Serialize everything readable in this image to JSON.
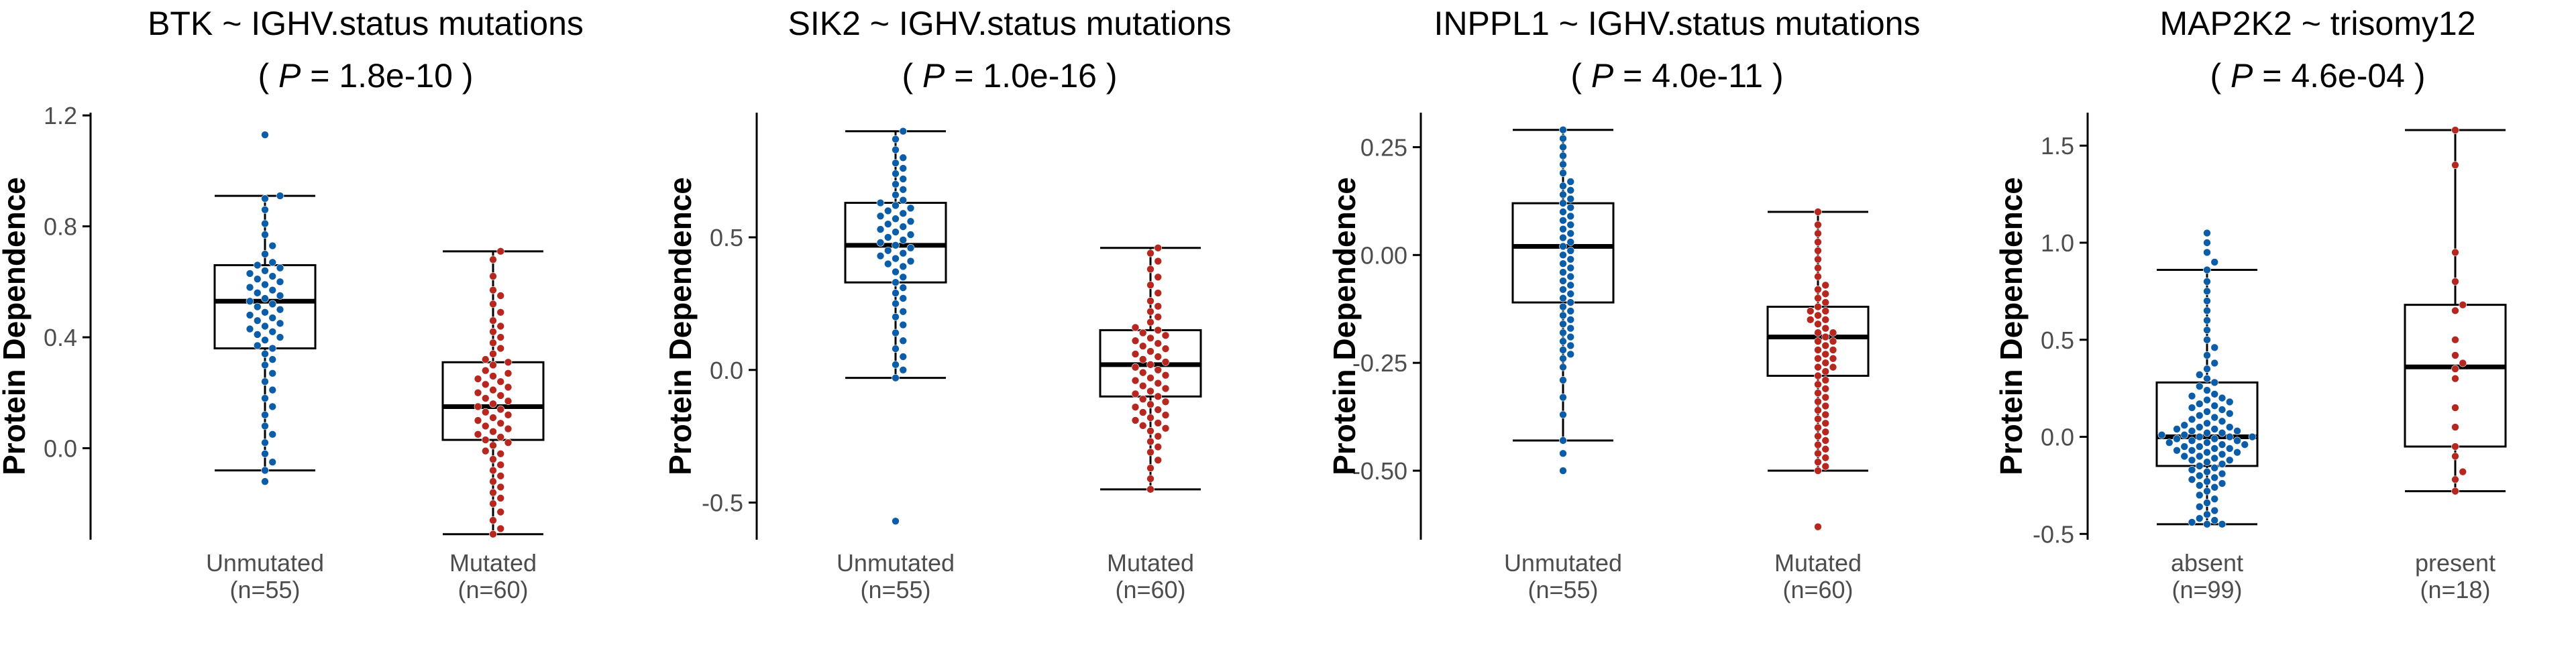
{
  "panels_meta": {
    "blue": "#0B5DA8",
    "red": "#B5271F"
  },
  "chart_data": [
    {
      "type": "boxplot",
      "title": "BTK ~ IGHV.status mutations",
      "p_prefix": "( ",
      "p_symbol": "P",
      "p_value": " = 1.8e-10 )",
      "ylabel": "Protein Dependence",
      "ylim": [
        -0.33,
        1.21
      ],
      "yticks": [
        0.0,
        0.4,
        0.8,
        1.2
      ],
      "ytick_labels": [
        "0.0",
        "0.4",
        "0.8",
        "1.2"
      ],
      "groups": [
        {
          "name": "Unmutated",
          "n_label": "(n=55)",
          "color": "#0B5DA8",
          "q1": 0.36,
          "median": 0.53,
          "q3": 0.66,
          "whisker_low": -0.08,
          "whisker_high": 0.91,
          "points": [
            1.13,
            0.91,
            0.9,
            0.86,
            0.81,
            0.77,
            0.73,
            0.7,
            0.67,
            0.66,
            0.65,
            0.64,
            0.63,
            0.62,
            0.61,
            0.6,
            0.59,
            0.58,
            0.57,
            0.56,
            0.55,
            0.54,
            0.53,
            0.52,
            0.51,
            0.5,
            0.49,
            0.48,
            0.47,
            0.46,
            0.45,
            0.44,
            0.43,
            0.42,
            0.41,
            0.4,
            0.39,
            0.37,
            0.36,
            0.34,
            0.32,
            0.3,
            0.27,
            0.24,
            0.21,
            0.18,
            0.15,
            0.12,
            0.08,
            0.05,
            0.02,
            -0.02,
            -0.05,
            -0.08,
            -0.12
          ]
        },
        {
          "name": "Mutated",
          "n_label": "(n=60)",
          "color": "#B5271F",
          "q1": 0.03,
          "median": 0.15,
          "q3": 0.31,
          "whisker_low": -0.31,
          "whisker_high": 0.71,
          "points": [
            0.71,
            0.68,
            0.62,
            0.57,
            0.55,
            0.52,
            0.49,
            0.46,
            0.44,
            0.42,
            0.4,
            0.38,
            0.36,
            0.34,
            0.32,
            0.31,
            0.3,
            0.28,
            0.27,
            0.26,
            0.25,
            0.24,
            0.23,
            0.22,
            0.21,
            0.2,
            0.19,
            0.18,
            0.17,
            0.16,
            0.15,
            0.14,
            0.13,
            0.12,
            0.11,
            0.1,
            0.09,
            0.08,
            0.07,
            0.06,
            0.05,
            0.04,
            0.03,
            0.02,
            0.01,
            -0.01,
            -0.02,
            -0.04,
            -0.06,
            -0.08,
            -0.1,
            -0.12,
            -0.14,
            -0.16,
            -0.18,
            -0.2,
            -0.23,
            -0.26,
            -0.29,
            -0.31
          ]
        }
      ]
    },
    {
      "type": "boxplot",
      "title": "SIK2 ~ IGHV.status mutations",
      "p_prefix": "( ",
      "p_symbol": "P",
      "p_value": " = 1.0e-16 )",
      "ylabel": "Protein Dependence",
      "ylim": [
        -0.64,
        0.97
      ],
      "yticks": [
        -0.5,
        0.0,
        0.5
      ],
      "ytick_labels": [
        "-0.5",
        "0.0",
        "0.5"
      ],
      "groups": [
        {
          "name": "Unmutated",
          "n_label": "(n=55)",
          "color": "#0B5DA8",
          "q1": 0.33,
          "median": 0.47,
          "q3": 0.63,
          "whisker_low": -0.03,
          "whisker_high": 0.9,
          "points": [
            0.9,
            0.87,
            0.83,
            0.8,
            0.78,
            0.76,
            0.74,
            0.72,
            0.7,
            0.68,
            0.66,
            0.64,
            0.63,
            0.62,
            0.61,
            0.6,
            0.59,
            0.58,
            0.57,
            0.56,
            0.55,
            0.54,
            0.53,
            0.52,
            0.51,
            0.5,
            0.49,
            0.48,
            0.47,
            0.46,
            0.45,
            0.44,
            0.43,
            0.42,
            0.41,
            0.4,
            0.39,
            0.37,
            0.35,
            0.33,
            0.31,
            0.29,
            0.27,
            0.25,
            0.22,
            0.2,
            0.17,
            0.14,
            0.11,
            0.08,
            0.05,
            0.02,
            0.0,
            -0.03,
            -0.57
          ]
        },
        {
          "name": "Mutated",
          "n_label": "(n=60)",
          "color": "#B5271F",
          "q1": -0.1,
          "median": 0.02,
          "q3": 0.15,
          "whisker_low": -0.45,
          "whisker_high": 0.46,
          "points": [
            0.46,
            0.44,
            0.41,
            0.38,
            0.35,
            0.32,
            0.29,
            0.26,
            0.24,
            0.22,
            0.2,
            0.18,
            0.16,
            0.15,
            0.14,
            0.13,
            0.12,
            0.11,
            0.1,
            0.09,
            0.08,
            0.07,
            0.06,
            0.05,
            0.04,
            0.03,
            0.02,
            0.01,
            0.0,
            -0.01,
            -0.02,
            -0.03,
            -0.04,
            -0.05,
            -0.06,
            -0.07,
            -0.08,
            -0.09,
            -0.1,
            -0.11,
            -0.12,
            -0.13,
            -0.14,
            -0.15,
            -0.16,
            -0.17,
            -0.18,
            -0.19,
            -0.2,
            -0.21,
            -0.22,
            -0.23,
            -0.25,
            -0.27,
            -0.29,
            -0.31,
            -0.34,
            -0.37,
            -0.41,
            -0.45
          ]
        }
      ]
    },
    {
      "type": "boxplot",
      "title": "INPPL1 ~ IGHV.status mutations",
      "p_prefix": "( ",
      "p_symbol": "P",
      "p_value": " = 4.0e-11 )",
      "ylabel": "Protein Dependence",
      "ylim": [
        -0.66,
        0.33
      ],
      "yticks": [
        -0.5,
        -0.25,
        0.0,
        0.25
      ],
      "ytick_labels": [
        "-0.50",
        "-0.25",
        "0.00",
        "0.25"
      ],
      "groups": [
        {
          "name": "Unmutated",
          "n_label": "(n=55)",
          "color": "#0B5DA8",
          "q1": -0.11,
          "median": 0.02,
          "q3": 0.12,
          "whisker_low": -0.43,
          "whisker_high": 0.29,
          "points": [
            0.29,
            0.27,
            0.25,
            0.23,
            0.21,
            0.19,
            0.17,
            0.16,
            0.15,
            0.14,
            0.13,
            0.12,
            0.11,
            0.1,
            0.09,
            0.08,
            0.07,
            0.06,
            0.05,
            0.04,
            0.03,
            0.02,
            0.01,
            0.0,
            -0.01,
            -0.02,
            -0.03,
            -0.04,
            -0.05,
            -0.06,
            -0.07,
            -0.08,
            -0.09,
            -0.1,
            -0.11,
            -0.12,
            -0.13,
            -0.14,
            -0.15,
            -0.16,
            -0.17,
            -0.18,
            -0.19,
            -0.2,
            -0.21,
            -0.22,
            -0.23,
            -0.24,
            -0.26,
            -0.29,
            -0.33,
            -0.37,
            -0.43,
            -0.46,
            -0.5
          ]
        },
        {
          "name": "Mutated",
          "n_label": "(n=60)",
          "color": "#B5271F",
          "q1": -0.28,
          "median": -0.19,
          "q3": -0.12,
          "whisker_low": -0.5,
          "whisker_high": 0.1,
          "points": [
            0.1,
            0.07,
            0.05,
            0.03,
            0.01,
            -0.01,
            -0.03,
            -0.05,
            -0.07,
            -0.08,
            -0.09,
            -0.1,
            -0.11,
            -0.12,
            -0.13,
            -0.14,
            -0.15,
            -0.16,
            -0.17,
            -0.18,
            -0.19,
            -0.2,
            -0.21,
            -0.22,
            -0.23,
            -0.24,
            -0.25,
            -0.26,
            -0.27,
            -0.28,
            -0.29,
            -0.3,
            -0.31,
            -0.32,
            -0.33,
            -0.34,
            -0.35,
            -0.36,
            -0.37,
            -0.38,
            -0.39,
            -0.4,
            -0.41,
            -0.42,
            -0.43,
            -0.44,
            -0.45,
            -0.46,
            -0.47,
            -0.48,
            -0.49,
            -0.5,
            -0.18,
            -0.2,
            -0.22,
            -0.15,
            -0.13,
            -0.24,
            -0.26,
            -0.63
          ]
        }
      ]
    },
    {
      "type": "boxplot",
      "title": "MAP2K2 ~ trisomy12",
      "p_prefix": "( ",
      "p_symbol": "P",
      "p_value": " = 4.6e-04 )",
      "ylabel": "Protein Dependence",
      "ylim": [
        -0.53,
        1.67
      ],
      "yticks": [
        -0.5,
        0.0,
        0.5,
        1.0,
        1.5
      ],
      "ytick_labels": [
        "-0.5",
        "0.0",
        "0.5",
        "1.0",
        "1.5"
      ],
      "groups": [
        {
          "name": "absent",
          "n_label": "(n=99)",
          "color": "#0B5DA8",
          "q1": -0.15,
          "median": 0.0,
          "q3": 0.28,
          "whisker_low": -0.45,
          "whisker_high": 0.86,
          "points": [
            1.05,
            1.0,
            0.95,
            0.9,
            0.86,
            0.8,
            0.75,
            0.7,
            0.65,
            0.6,
            0.55,
            0.5,
            0.46,
            0.42,
            0.38,
            0.35,
            0.32,
            0.3,
            0.28,
            0.26,
            0.24,
            0.22,
            0.21,
            0.2,
            0.19,
            0.18,
            0.17,
            0.16,
            0.15,
            0.14,
            0.13,
            0.12,
            0.11,
            0.1,
            0.09,
            0.08,
            0.07,
            0.06,
            0.05,
            0.05,
            0.04,
            0.04,
            0.03,
            0.03,
            0.02,
            0.02,
            0.01,
            0.01,
            0.0,
            0.0,
            0.0,
            -0.01,
            -0.01,
            -0.02,
            -0.02,
            -0.03,
            -0.03,
            -0.04,
            -0.04,
            -0.05,
            -0.05,
            -0.06,
            -0.06,
            -0.07,
            -0.07,
            -0.08,
            -0.08,
            -0.09,
            -0.1,
            -0.1,
            -0.11,
            -0.12,
            -0.12,
            -0.13,
            -0.14,
            -0.15,
            -0.16,
            -0.17,
            -0.18,
            -0.19,
            -0.2,
            -0.21,
            -0.22,
            -0.23,
            -0.24,
            -0.25,
            -0.26,
            -0.28,
            -0.3,
            -0.32,
            -0.34,
            -0.36,
            -0.38,
            -0.4,
            -0.42,
            -0.43,
            -0.44,
            -0.45,
            -0.45
          ]
        },
        {
          "name": "present",
          "n_label": "(n=18)",
          "color": "#B5271F",
          "q1": -0.05,
          "median": 0.36,
          "q3": 0.68,
          "whisker_low": -0.28,
          "whisker_high": 1.58,
          "points": [
            1.58,
            1.4,
            0.95,
            0.8,
            0.68,
            0.65,
            0.5,
            0.42,
            0.38,
            0.35,
            0.3,
            0.15,
            0.05,
            -0.05,
            -0.1,
            -0.18,
            -0.22,
            -0.28
          ]
        }
      ]
    }
  ]
}
